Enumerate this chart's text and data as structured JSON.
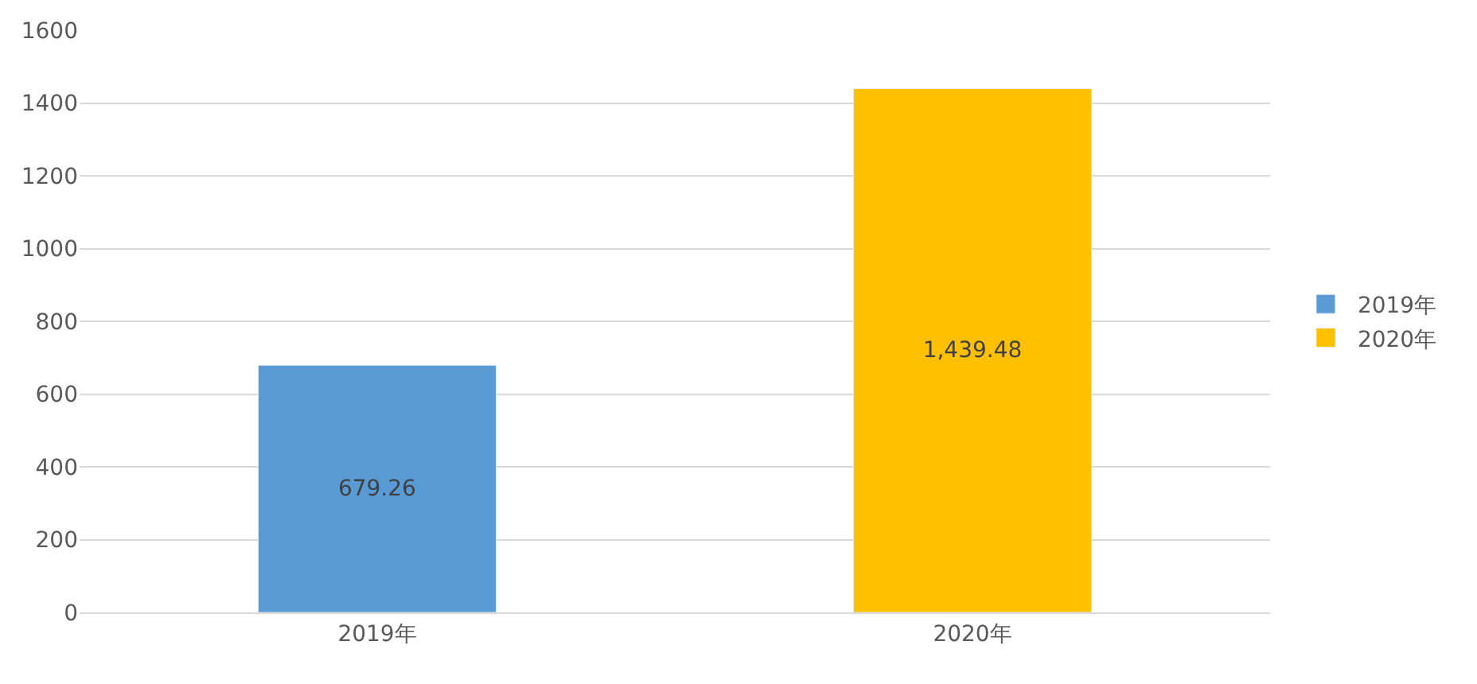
{
  "chart_data": {
    "type": "bar",
    "categories": [
      "2019年",
      "2020年"
    ],
    "series": [
      {
        "name": "2019年",
        "color": "#5b9bd5",
        "values": [
          679.26,
          null
        ],
        "value_labels": [
          "679.26",
          null
        ]
      },
      {
        "name": "2020年",
        "color": "#ffc000",
        "values": [
          null,
          1439.48
        ],
        "value_labels": [
          null,
          "1,439.48"
        ]
      }
    ],
    "ylim": [
      0,
      1600
    ],
    "yticks": [
      0,
      200,
      400,
      600,
      800,
      1000,
      1200,
      1400,
      1600
    ],
    "grid": "y",
    "legend": "right"
  }
}
